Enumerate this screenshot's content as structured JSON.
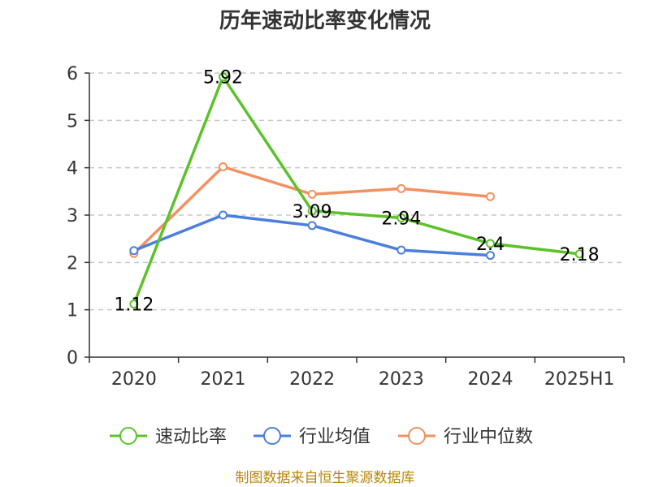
{
  "source_note": "制图数据来自恒生聚源数据库",
  "chart_data": {
    "type": "line",
    "title": "历年速动比率变化情况",
    "categories": [
      "2020",
      "2021",
      "2022",
      "2023",
      "2024",
      "2025H1"
    ],
    "ylim": [
      0,
      6
    ],
    "yticks": [
      0,
      1,
      2,
      3,
      4,
      5,
      6
    ],
    "grid": true,
    "legend_position": "bottom-center",
    "series": [
      {
        "name": "速动比率",
        "color": "#5cc22a",
        "values": [
          1.12,
          5.92,
          3.09,
          2.94,
          2.4,
          2.18
        ],
        "labels": [
          "1.12",
          "5.92",
          "3.09",
          "2.94",
          "2.4",
          "2.18"
        ]
      },
      {
        "name": "行业均值",
        "color": "#4a7fdb",
        "values": [
          2.25,
          3.0,
          2.78,
          2.26,
          2.15,
          null
        ]
      },
      {
        "name": "行业中位数",
        "color": "#f39060",
        "values": [
          2.19,
          4.02,
          3.44,
          3.56,
          3.39,
          null
        ]
      }
    ]
  }
}
